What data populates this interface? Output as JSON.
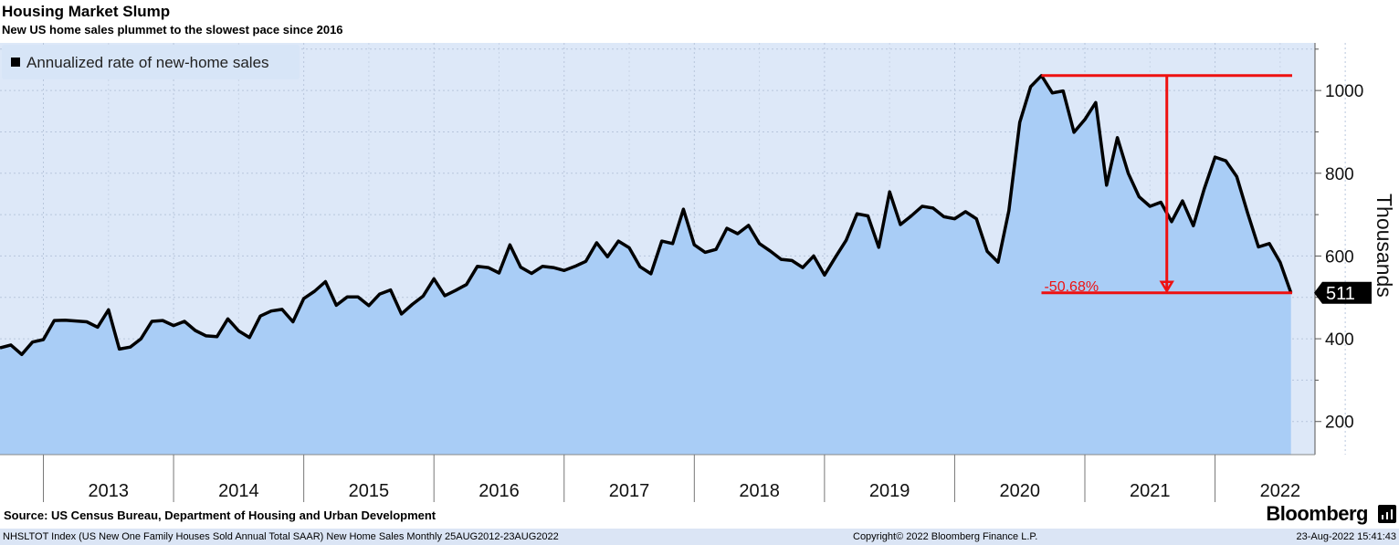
{
  "header": {
    "title": "Housing Market Slump",
    "subtitle": "New US home sales plummet to the slowest pace since 2016"
  },
  "legend": {
    "label": "Annualized rate of new-home sales"
  },
  "source": "Source: US Census Bureau, Department of Housing and Urban Development",
  "brand": "Bloomberg",
  "footer": {
    "ticker": "NHSLTOT Index (US New One Family Houses Sold Annual Total SAAR) New Home Sales  Monthly 25AUG2012-23AUG2022",
    "copyright": "Copyright© 2022 Bloomberg Finance L.P.",
    "timestamp": "23-Aug-2022 15:41:43"
  },
  "colors": {
    "plot_bg": "#dde8f8",
    "area_fill": "#a9cdf6",
    "line": "#000000",
    "annotation": "#ee1111"
  },
  "chart_data": {
    "type": "area",
    "x_start": "2012-09",
    "frequency": "monthly",
    "series": [
      {
        "name": "Annualized rate of new-home sales",
        "values": [
          378,
          385,
          362,
          392,
          398,
          444,
          445,
          443,
          441,
          428,
          470,
          375,
          380,
          400,
          442,
          444,
          432,
          442,
          420,
          407,
          405,
          448,
          419,
          403,
          455,
          467,
          471,
          441,
          497,
          515,
          538,
          481,
          501,
          501,
          480,
          508,
          518,
          460,
          483,
          503,
          545,
          504,
          517,
          531,
          575,
          572,
          559,
          627,
          573,
          558,
          575,
          572,
          565,
          575,
          587,
          632,
          598,
          636,
          620,
          574,
          557,
          636,
          630,
          713,
          627,
          609,
          616,
          667,
          654,
          674,
          630,
          612,
          592,
          589,
          572,
          600,
          554,
          597,
          638,
          702,
          697,
          621,
          755,
          676,
          697,
          720,
          716,
          695,
          690,
          707,
          690,
          611,
          585,
          710,
          923,
          1009,
          1036,
          994,
          999,
          899,
          930,
          971,
          771,
          886,
          800,
          743,
          720,
          730,
          683,
          733,
          673,
          762,
          839,
          830,
          792,
          704,
          622,
          630,
          585,
          511
        ]
      }
    ],
    "last_value_label": "511",
    "annotation": {
      "text": "-50.68%",
      "peak_value": 1036,
      "trough_value": 511
    },
    "y_axis": {
      "label": "Thousands",
      "ticks": [
        200,
        400,
        600,
        800,
        1000
      ],
      "range": [
        120,
        1115
      ]
    },
    "x_axis": {
      "year_labels": [
        "2013",
        "2014",
        "2015",
        "2016",
        "2017",
        "2018",
        "2019",
        "2020",
        "2021",
        "2022"
      ]
    },
    "grid": true
  }
}
